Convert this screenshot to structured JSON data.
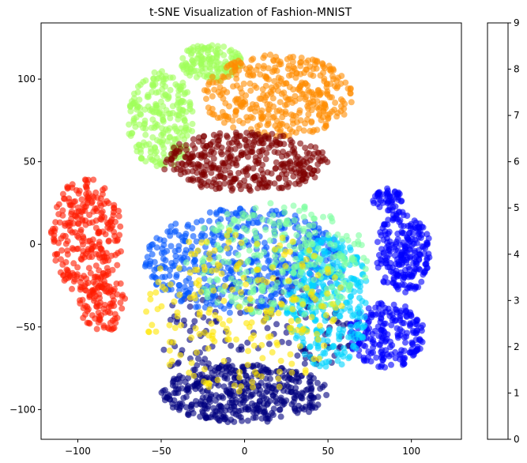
{
  "chart_data": {
    "type": "scatter",
    "title": "t-SNE Visualization of Fashion-MNIST",
    "xlabel": "",
    "ylabel": "",
    "xlim": [
      -122,
      130
    ],
    "ylim": [
      -118,
      134
    ],
    "xticks": [
      -100,
      -50,
      0,
      50,
      100
    ],
    "yticks": [
      -100,
      -50,
      0,
      50,
      100
    ],
    "grid": false,
    "legend": "none",
    "point_alpha": 0.6,
    "colorbar": {
      "min": 0,
      "max": 9,
      "ticks": [
        "0",
        "1",
        "2",
        "3",
        "4",
        "5",
        "6",
        "7",
        "8",
        "9"
      ],
      "colormap": "jet",
      "alpha": 0.6,
      "bands": [
        "#00007f",
        "#0000ff",
        "#0055ff",
        "#00d4ff",
        "#7dffa0",
        "#a0ff5a",
        "#ffe600",
        "#ff8c00",
        "#ff1a00",
        "#7f0000"
      ]
    },
    "clusters": [
      {
        "label": 0,
        "color": "#00007f",
        "cx": 0,
        "cy": -90,
        "rx": 50,
        "ry": 18,
        "n": 420
      },
      {
        "label": 0,
        "color": "#00007f",
        "cx": 5,
        "cy": -55,
        "rx": 60,
        "ry": 35,
        "n": 140
      },
      {
        "label": 1,
        "color": "#0000ff",
        "cx": 95,
        "cy": -5,
        "rx": 17,
        "ry": 25,
        "n": 230
      },
      {
        "label": 1,
        "color": "#0000ff",
        "cx": 85,
        "cy": -55,
        "rx": 23,
        "ry": 20,
        "n": 210
      },
      {
        "label": 1,
        "color": "#0000ff",
        "cx": 86,
        "cy": 27,
        "rx": 9,
        "ry": 7,
        "n": 50
      },
      {
        "label": 2,
        "color": "#0055ff",
        "cx": 0,
        "cy": -10,
        "rx": 60,
        "ry": 32,
        "n": 520
      },
      {
        "label": 3,
        "color": "#00d4ff",
        "cx": 50,
        "cy": -35,
        "rx": 25,
        "ry": 40,
        "n": 300
      },
      {
        "label": 4,
        "color": "#7dffa0",
        "cx": 20,
        "cy": -10,
        "rx": 55,
        "ry": 35,
        "n": 280
      },
      {
        "label": 5,
        "color": "#a0ff5a",
        "cx": -50,
        "cy": 75,
        "rx": 20,
        "ry": 30,
        "n": 240
      },
      {
        "label": 5,
        "color": "#a0ff5a",
        "cx": -20,
        "cy": 110,
        "rx": 18,
        "ry": 12,
        "n": 140
      },
      {
        "label": 6,
        "color": "#ffe600",
        "cx": 0,
        "cy": -40,
        "rx": 60,
        "ry": 50,
        "n": 220
      },
      {
        "label": 7,
        "color": "#ff8c00",
        "cx": 20,
        "cy": 90,
        "rx": 45,
        "ry": 25,
        "n": 380
      },
      {
        "label": 8,
        "color": "#ff1a00",
        "cx": -95,
        "cy": 5,
        "rx": 22,
        "ry": 35,
        "n": 260
      },
      {
        "label": 8,
        "color": "#ff1a00",
        "cx": -85,
        "cy": -35,
        "rx": 15,
        "ry": 18,
        "n": 100
      },
      {
        "label": 9,
        "color": "#7f0000",
        "cx": 0,
        "cy": 50,
        "rx": 50,
        "ry": 18,
        "n": 380
      }
    ]
  }
}
